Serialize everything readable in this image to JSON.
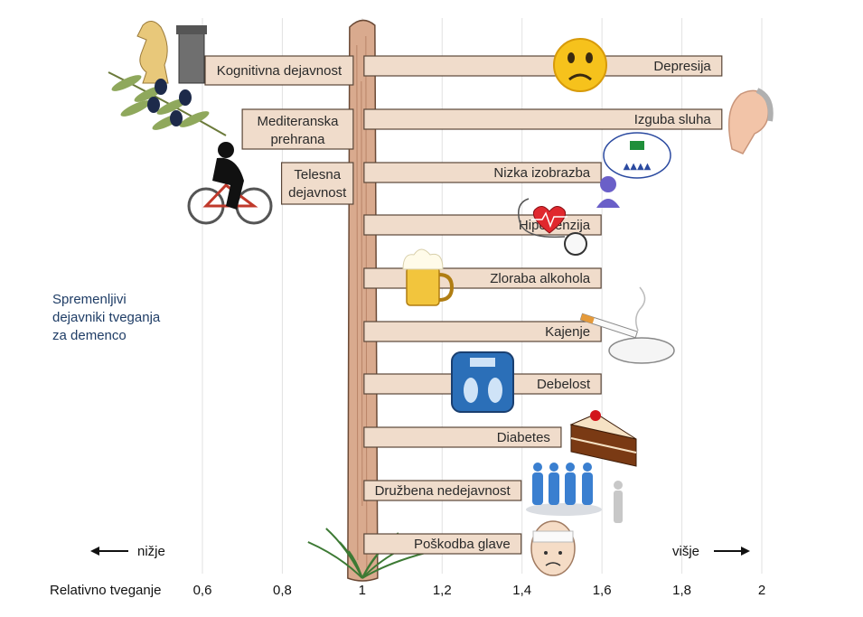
{
  "chart_data": {
    "type": "bar",
    "subtitle_lines": [
      "Spremenljivi",
      "dejavniki tveganja",
      "za demenco"
    ],
    "xlabel": "Relativno tveganje",
    "xlim": [
      0.6,
      2.0
    ],
    "xticks": [
      "0,6",
      "0,8",
      "1",
      "1,2",
      "1,4",
      "1,6",
      "1,8",
      "2"
    ],
    "xtick_values": [
      0.6,
      0.8,
      1.0,
      1.2,
      1.4,
      1.6,
      1.8,
      2.0
    ],
    "baseline": 1.0,
    "grid": true,
    "lower_label": "nižje",
    "higher_label": "višje",
    "protective": [
      {
        "lines": [
          "Kognitivna dejavnost"
        ],
        "value": 0.6,
        "icon": "chess-pieces-icon"
      },
      {
        "lines": [
          "Mediteranska",
          "prehrana"
        ],
        "value": 0.65,
        "icon": "olive-branch-icon"
      },
      {
        "lines": [
          "Telesna",
          "dejavnost"
        ],
        "value": 0.78,
        "icon": "cyclist-icon"
      }
    ],
    "risk": [
      {
        "lines": [
          "Depresija"
        ],
        "value": 1.9,
        "icon": "sad-face-icon"
      },
      {
        "lines": [
          "Izguba sluha"
        ],
        "value": 1.9,
        "icon": "ear-icon"
      },
      {
        "lines": [
          "Nizka izobrazba"
        ],
        "value": 1.6,
        "icon": "classroom-thought-icon"
      },
      {
        "lines": [
          "Hipertenzija"
        ],
        "value": 1.6,
        "icon": "blood-pressure-icon"
      },
      {
        "lines": [
          "Zloraba alkohola"
        ],
        "value": 1.6,
        "icon": "beer-mug-icon"
      },
      {
        "lines": [
          "Kajenje"
        ],
        "value": 1.6,
        "icon": "cigarette-ashtray-icon"
      },
      {
        "lines": [
          "Debelost"
        ],
        "value": 1.6,
        "icon": "bathroom-scale-icon"
      },
      {
        "lines": [
          "Diabetes"
        ],
        "value": 1.5,
        "icon": "cake-icon"
      },
      {
        "lines": [
          "Družbena nedejavnost"
        ],
        "value": 1.4,
        "icon": "isolated-person-icon"
      },
      {
        "lines": [
          "Poškodba glave"
        ],
        "value": 1.4,
        "icon": "bandaged-head-icon"
      }
    ]
  }
}
